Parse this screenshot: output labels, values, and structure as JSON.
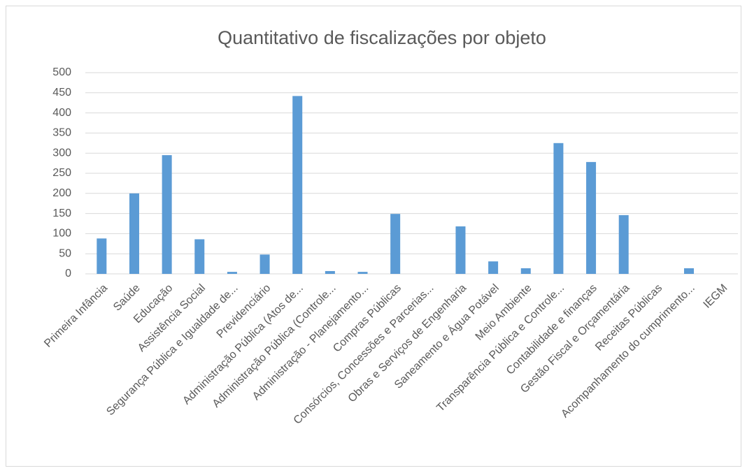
{
  "chart_data": {
    "type": "bar",
    "title": "Quantitativo de fiscalizações por objeto",
    "categories": [
      "Primeira Infância",
      "Saúde",
      "Educação",
      "Assistência Social",
      "Segurança Pública e Igualdade de...",
      "Previdenciário",
      "Administração Pública (Atos de...",
      "Administração Pública (Controle...",
      "Administração - Planejamento...",
      "Compras Públicas",
      "Consórcios, Concessões e Parcerias...",
      "Obras e Serviços de Engenharia",
      "Saneamento e Água Potável",
      "Meio Ambiente",
      "Transparência Pública e Controle...",
      "Contabilidade e finanças",
      "Gestão Fiscal e Orçamentária",
      "Receitas Públicas",
      "Acompanhamento do cumprimento...",
      "IEGM"
    ],
    "values": [
      88,
      200,
      295,
      86,
      5,
      48,
      442,
      7,
      5,
      149,
      0,
      118,
      31,
      14,
      325,
      278,
      146,
      0,
      14,
      0
    ],
    "color": "#5b9bd5",
    "ylim": [
      0,
      500
    ],
    "yticks": [
      0,
      50,
      100,
      150,
      200,
      250,
      300,
      350,
      400,
      450,
      500
    ],
    "grid": true
  }
}
